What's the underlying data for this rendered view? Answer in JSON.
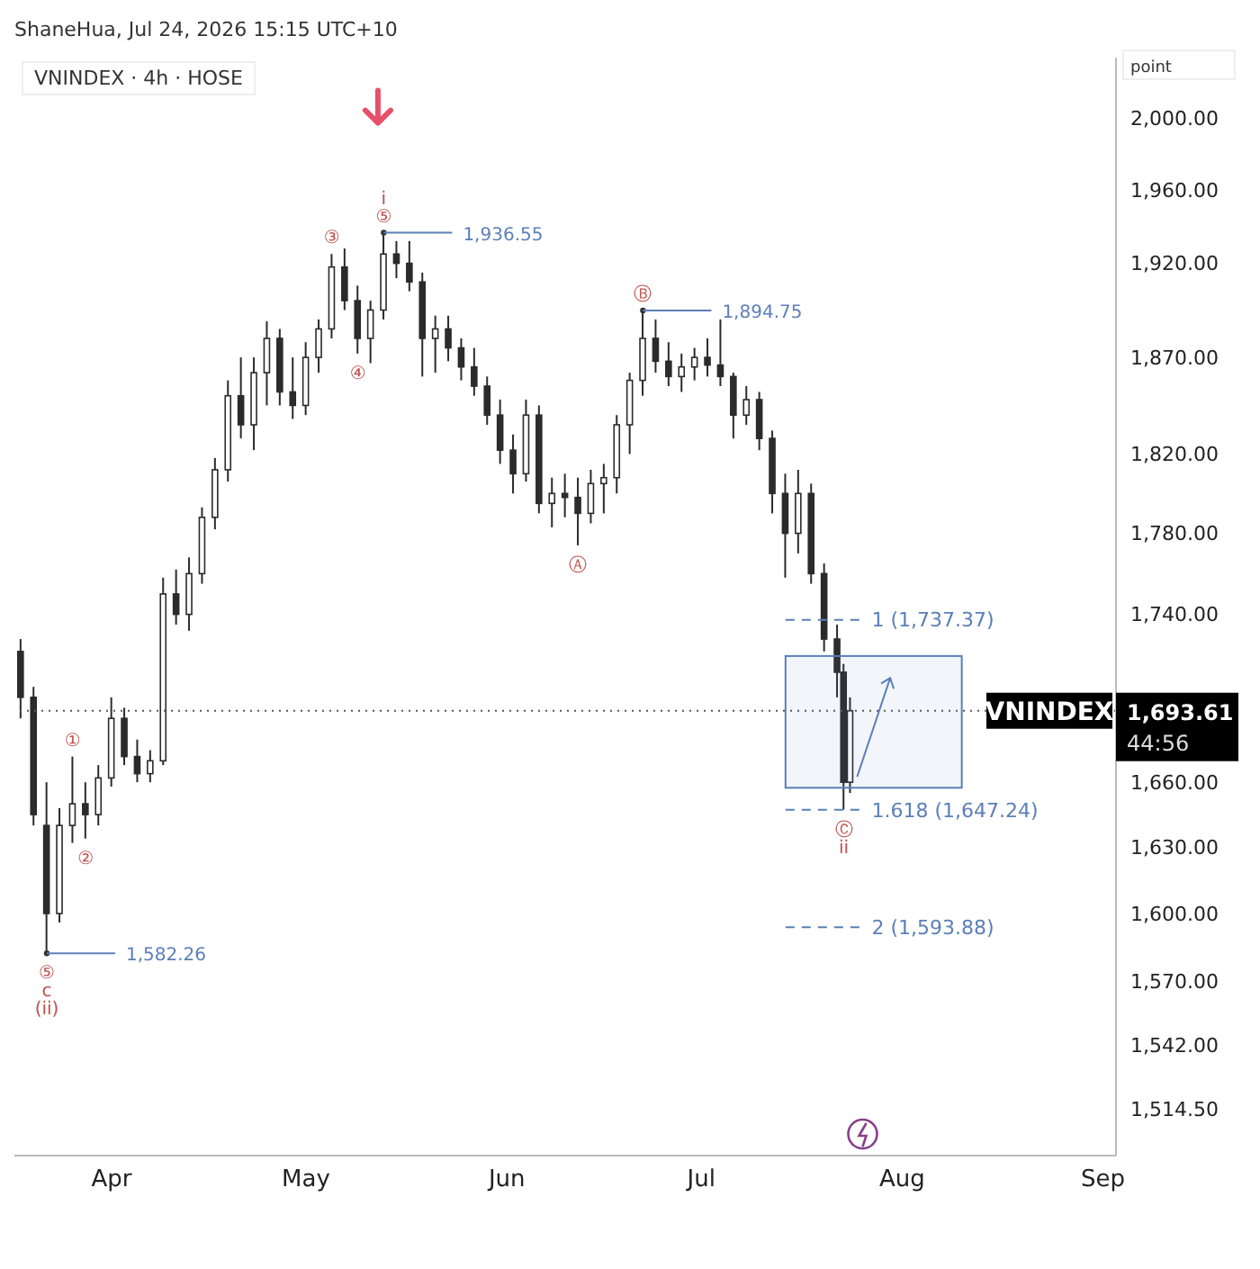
{
  "chart_data": {
    "type": "candlestick",
    "title": "VNINDEX · 4h · HOSE",
    "subtitle": "ShaneHua, Jul 24, 2026 15:15 UTC+10",
    "ylabel": "point",
    "log": true,
    "color": "#2b2b2b",
    "x": [
      "2026-03-18",
      "2026-03-20",
      "2026-03-22",
      "2026-03-24",
      "2026-03-26",
      "2026-03-28",
      "2026-03-30",
      "2026-04-01",
      "2026-04-03",
      "2026-04-05",
      "2026-04-07",
      "2026-04-09",
      "2026-04-11",
      "2026-04-13",
      "2026-04-15",
      "2026-04-17",
      "2026-04-19",
      "2026-04-21",
      "2026-04-23",
      "2026-04-25",
      "2026-04-27",
      "2026-04-29",
      "2026-05-01",
      "2026-05-03",
      "2026-05-05",
      "2026-05-07",
      "2026-05-09",
      "2026-05-11",
      "2026-05-13",
      "2026-05-15",
      "2026-05-17",
      "2026-05-19",
      "2026-05-21",
      "2026-05-23",
      "2026-05-25",
      "2026-05-27",
      "2026-05-29",
      "2026-05-31",
      "2026-06-02",
      "2026-06-04",
      "2026-06-06",
      "2026-06-08",
      "2026-06-10",
      "2026-06-12",
      "2026-06-14",
      "2026-06-16",
      "2026-06-18",
      "2026-06-20",
      "2026-06-22",
      "2026-06-24",
      "2026-06-26",
      "2026-06-28",
      "2026-06-30",
      "2026-07-02",
      "2026-07-04",
      "2026-07-06",
      "2026-07-08",
      "2026-07-10",
      "2026-07-12",
      "2026-07-14",
      "2026-07-16",
      "2026-07-18",
      "2026-07-20",
      "2026-07-22",
      "2026-07-23",
      "2026-07-24"
    ],
    "ohlc": [
      [
        1722,
        1728,
        1690,
        1700
      ],
      [
        1700,
        1705,
        1640,
        1645
      ],
      [
        1640,
        1660,
        1582.26,
        1600
      ],
      [
        1600,
        1648,
        1596,
        1640
      ],
      [
        1640,
        1672,
        1632,
        1650
      ],
      [
        1650,
        1660,
        1634,
        1645
      ],
      [
        1645,
        1668,
        1640,
        1662
      ],
      [
        1662,
        1700,
        1658,
        1690
      ],
      [
        1690,
        1695,
        1668,
        1672
      ],
      [
        1672,
        1680,
        1660,
        1664
      ],
      [
        1664,
        1675,
        1660,
        1670
      ],
      [
        1670,
        1758,
        1668,
        1750
      ],
      [
        1750,
        1762,
        1735,
        1740
      ],
      [
        1740,
        1768,
        1732,
        1760
      ],
      [
        1760,
        1793,
        1755,
        1788
      ],
      [
        1788,
        1818,
        1782,
        1812
      ],
      [
        1812,
        1858,
        1806,
        1850
      ],
      [
        1850,
        1870,
        1828,
        1835
      ],
      [
        1835,
        1870,
        1822,
        1862
      ],
      [
        1862,
        1889,
        1845,
        1880
      ],
      [
        1880,
        1885,
        1845,
        1852
      ],
      [
        1852,
        1870,
        1838,
        1845
      ],
      [
        1845,
        1878,
        1840,
        1870
      ],
      [
        1870,
        1890,
        1862,
        1885
      ],
      [
        1885,
        1925,
        1880,
        1918
      ],
      [
        1918,
        1928,
        1895,
        1900
      ],
      [
        1900,
        1908,
        1872,
        1880
      ],
      [
        1880,
        1900,
        1867,
        1895
      ],
      [
        1895,
        1936.55,
        1890,
        1925
      ],
      [
        1925,
        1932,
        1912,
        1920
      ],
      [
        1920,
        1932,
        1905,
        1910
      ],
      [
        1910,
        1915,
        1860,
        1880
      ],
      [
        1880,
        1892,
        1862,
        1885
      ],
      [
        1885,
        1892,
        1868,
        1875
      ],
      [
        1875,
        1880,
        1858,
        1865
      ],
      [
        1865,
        1875,
        1850,
        1855
      ],
      [
        1855,
        1860,
        1835,
        1840
      ],
      [
        1840,
        1848,
        1815,
        1822
      ],
      [
        1822,
        1830,
        1800,
        1810
      ],
      [
        1810,
        1848,
        1806,
        1840
      ],
      [
        1840,
        1845,
        1790,
        1795
      ],
      [
        1795,
        1808,
        1783,
        1800
      ],
      [
        1800,
        1810,
        1788,
        1798
      ],
      [
        1798,
        1808,
        1774,
        1790
      ],
      [
        1790,
        1812,
        1785,
        1805
      ],
      [
        1805,
        1815,
        1790,
        1808
      ],
      [
        1808,
        1840,
        1800,
        1835
      ],
      [
        1835,
        1862,
        1820,
        1858
      ],
      [
        1858,
        1894.75,
        1850,
        1880
      ],
      [
        1880,
        1890,
        1862,
        1868
      ],
      [
        1868,
        1878,
        1855,
        1860
      ],
      [
        1860,
        1872,
        1852,
        1865
      ],
      [
        1865,
        1875,
        1858,
        1870
      ],
      [
        1870,
        1880,
        1860,
        1866
      ],
      [
        1866,
        1890,
        1855,
        1860
      ],
      [
        1860,
        1862,
        1828,
        1840
      ],
      [
        1840,
        1855,
        1835,
        1848
      ],
      [
        1848,
        1852,
        1822,
        1828
      ],
      [
        1828,
        1832,
        1790,
        1800
      ],
      [
        1800,
        1810,
        1758,
        1780
      ],
      [
        1780,
        1812,
        1770,
        1800
      ],
      [
        1800,
        1805,
        1755,
        1760
      ],
      [
        1760,
        1765,
        1722,
        1728
      ],
      [
        1728,
        1735,
        1700,
        1712
      ],
      [
        1712,
        1716,
        1647.24,
        1660
      ],
      [
        1660,
        1700,
        1655,
        1693.61
      ]
    ],
    "xlim": [
      "2026-03-17",
      "2026-09-03"
    ],
    "xticks": [
      {
        "value": "2026-04-01",
        "label": "Apr"
      },
      {
        "value": "2026-05-01",
        "label": "May"
      },
      {
        "value": "2026-06-01",
        "label": "Jun"
      },
      {
        "value": "2026-07-01",
        "label": "Jul"
      },
      {
        "value": "2026-08-01",
        "label": "Aug"
      },
      {
        "value": "2026-09-01",
        "label": "Sep"
      }
    ],
    "ylim": [
      1495,
      2034
    ],
    "yticks": [
      {
        "value": 1514.5,
        "label": "1,514.50"
      },
      {
        "value": 1542,
        "label": "1,542.00"
      },
      {
        "value": 1570,
        "label": "1,570.00"
      },
      {
        "value": 1600,
        "label": "1,600.00"
      },
      {
        "value": 1630,
        "label": "1,630.00"
      },
      {
        "value": 1660,
        "label": "1,660.00"
      },
      {
        "value": 1740,
        "label": "1,740.00"
      },
      {
        "value": 1780,
        "label": "1,780.00"
      },
      {
        "value": 1820,
        "label": "1,820.00"
      },
      {
        "value": 1870,
        "label": "1,870.00"
      },
      {
        "value": 1920,
        "label": "1,920.00"
      },
      {
        "value": 1960,
        "label": "1,960.00"
      },
      {
        "value": 2000,
        "label": "2,000.00"
      }
    ],
    "ref_lines": [
      {
        "axis": "y",
        "value": 1737.37,
        "label": "1 (1,737.37)",
        "color": "#5b7fb8",
        "line_style": "dashed"
      },
      {
        "axis": "y",
        "value": 1647.24,
        "label": "1.618 (1,647.24)",
        "color": "#5b7fb8",
        "line_style": "dashed"
      },
      {
        "axis": "y",
        "value": 1593.88,
        "label": "2 (1,593.88)",
        "color": "#5b7fb8",
        "line_style": "dashed"
      },
      {
        "axis": "y",
        "value": 1693.61,
        "label": "VNINDEX",
        "color": "#555555",
        "line_style": "dotted"
      }
    ],
    "annotations": [
      {
        "text": "1,936.55",
        "x": "2026-05-13",
        "y": 1936.55
      },
      {
        "text": "1,582.26",
        "x": "2026-03-22",
        "y": 1582.26
      },
      {
        "text": "1,894.75",
        "x": "2026-06-22",
        "y": 1894.75
      },
      {
        "text": "③",
        "x": "2026-05-05",
        "y": 1925
      },
      {
        "text": "④",
        "x": "2026-05-09",
        "y": 1872
      },
      {
        "text": "⑤",
        "x": "2026-05-13",
        "y": 1936.55
      },
      {
        "text": "i",
        "x": "2026-05-13",
        "y": 1936.55
      },
      {
        "text": "①",
        "x": "2026-03-26",
        "y": 1672
      },
      {
        "text": "②",
        "x": "2026-03-28",
        "y": 1634
      },
      {
        "text": "⑤",
        "x": "2026-03-22",
        "y": 1582.26
      },
      {
        "text": "c",
        "x": "2026-03-22",
        "y": 1582.26
      },
      {
        "text": "(ii)",
        "x": "2026-03-22",
        "y": 1582.26
      },
      {
        "text": "Ⓐ",
        "x": "2026-06-12",
        "y": 1774
      },
      {
        "text": "Ⓑ",
        "x": "2026-06-22",
        "y": 1894.75
      },
      {
        "text": "Ⓒ",
        "x": "2026-07-23",
        "y": 1647.24
      },
      {
        "text": "ii",
        "x": "2026-07-23",
        "y": 1647.24
      },
      "1,693.61",
      "44:56"
    ]
  }
}
